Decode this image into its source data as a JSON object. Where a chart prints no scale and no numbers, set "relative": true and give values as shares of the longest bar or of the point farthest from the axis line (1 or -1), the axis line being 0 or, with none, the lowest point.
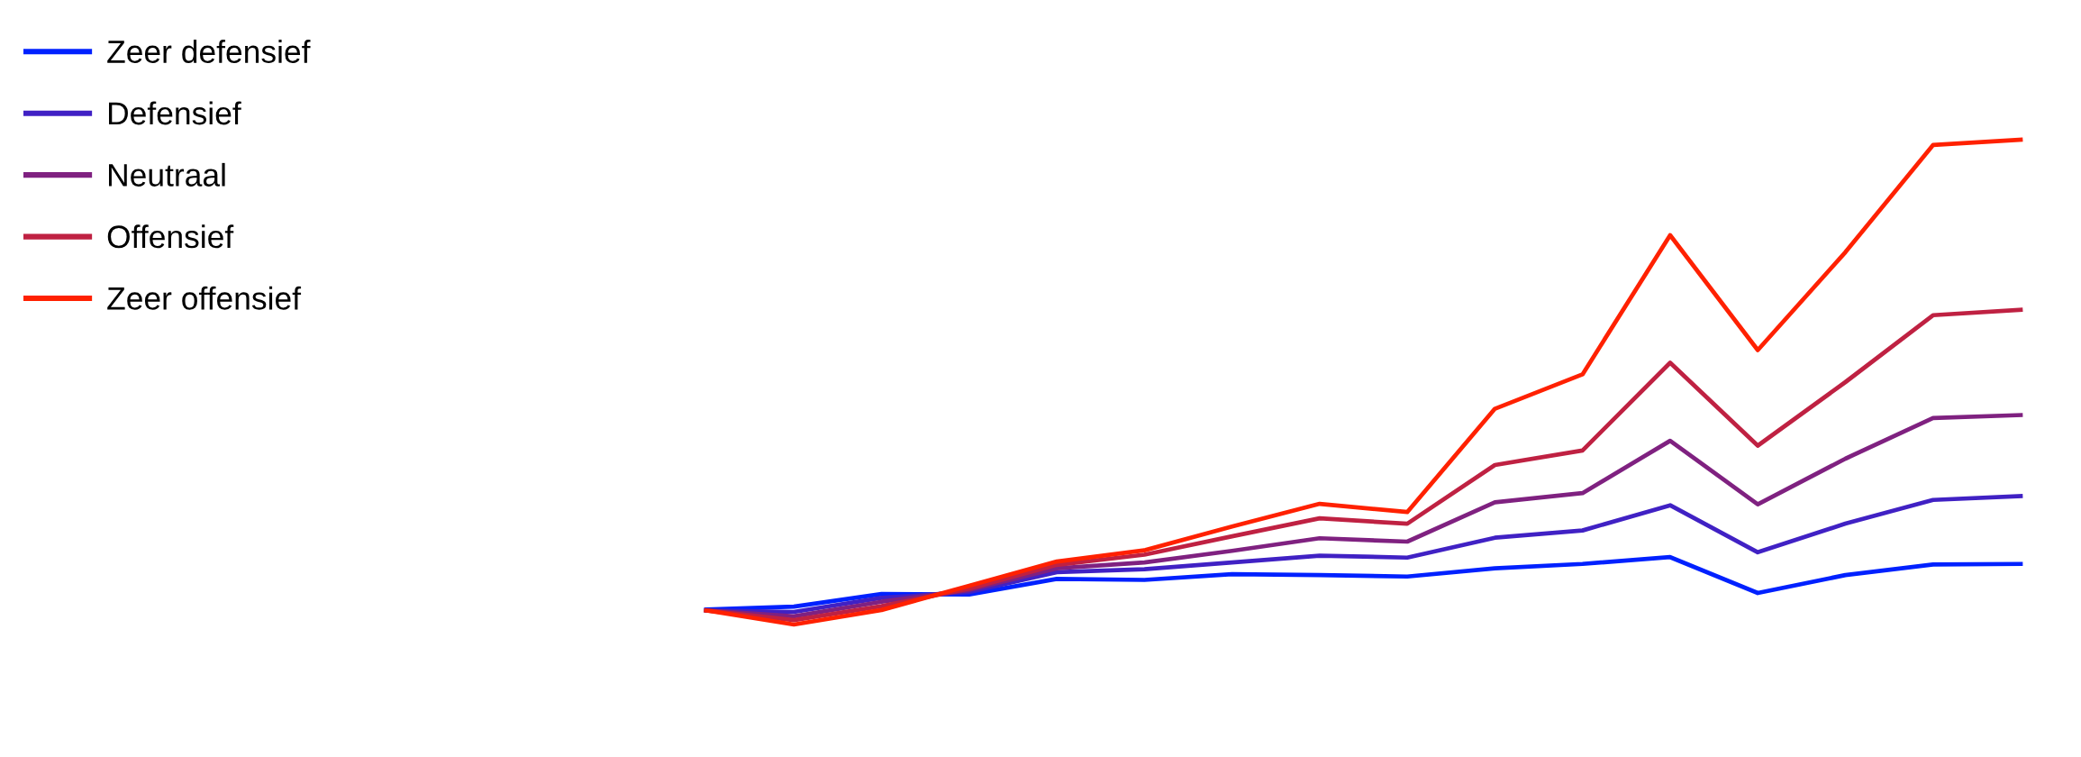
{
  "chart_data": {
    "type": "line",
    "relative": true,
    "legend": "top left",
    "categories": [
      null,
      null,
      null,
      null,
      null,
      null,
      null,
      null,
      null,
      null,
      null,
      null,
      null,
      null,
      null,
      null
    ],
    "series": [
      {
        "name": "Zeer defensief",
        "color": "#0021ff",
        "values": [
          0.031,
          0.037,
          0.063,
          0.062,
          0.094,
          0.092,
          0.104,
          0.102,
          0.099,
          0.116,
          0.125,
          0.139,
          0.065,
          0.102,
          0.124,
          0.125
        ]
      },
      {
        "name": "Defensief",
        "color": "#4021c4",
        "values": [
          0.029,
          0.026,
          0.055,
          0.067,
          0.108,
          0.114,
          0.128,
          0.142,
          0.138,
          0.179,
          0.194,
          0.246,
          0.149,
          0.208,
          0.257,
          0.265
        ]
      },
      {
        "name": "Neutraal",
        "color": "#7f2180",
        "values": [
          0.029,
          0.017,
          0.047,
          0.071,
          0.116,
          0.128,
          0.152,
          0.178,
          0.171,
          0.252,
          0.271,
          0.379,
          0.248,
          0.342,
          0.426,
          0.432
        ]
      },
      {
        "name": "Offensief",
        "color": "#bf2142",
        "values": [
          0.029,
          0.009,
          0.038,
          0.074,
          0.123,
          0.144,
          0.182,
          0.219,
          0.208,
          0.329,
          0.359,
          0.54,
          0.369,
          0.5,
          0.638,
          0.649
        ]
      },
      {
        "name": "Zeer offensief",
        "color": "#ff2100",
        "values": [
          0.029,
          0.0,
          0.03,
          0.08,
          0.13,
          0.153,
          0.202,
          0.249,
          0.232,
          0.445,
          0.516,
          0.803,
          0.566,
          0.768,
          0.989,
          1.0
        ]
      }
    ]
  }
}
